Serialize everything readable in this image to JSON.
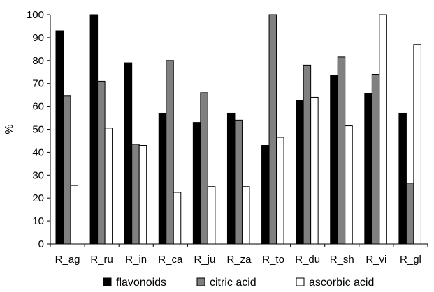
{
  "chart_data": {
    "type": "bar",
    "title": "",
    "xlabel": "",
    "ylabel": "%",
    "ylim": [
      0,
      100
    ],
    "yticks": [
      0,
      10,
      20,
      30,
      40,
      50,
      60,
      70,
      80,
      90,
      100
    ],
    "grid": false,
    "legend_position": "bottom",
    "categories": [
      "R_ag",
      "R_ru",
      "R_in",
      "R_ca",
      "R_ju",
      "R_za",
      "R_to",
      "R_du",
      "R_sh",
      "R_vi",
      "R_gl"
    ],
    "series": [
      {
        "name": "flavonoids",
        "color": "#000000",
        "values": [
          93,
          100,
          79,
          57,
          53,
          57,
          43,
          62.5,
          73.5,
          65.5,
          57
        ]
      },
      {
        "name": "citric acid",
        "color": "#808080",
        "values": [
          64.5,
          71,
          43.5,
          80,
          66,
          54,
          100,
          78,
          81.5,
          74,
          26.5
        ]
      },
      {
        "name": "ascorbic acid",
        "color": "#ffffff",
        "values": [
          25.5,
          50.5,
          43,
          22.5,
          25,
          25,
          46.5,
          64,
          51.5,
          100,
          87
        ]
      }
    ]
  }
}
